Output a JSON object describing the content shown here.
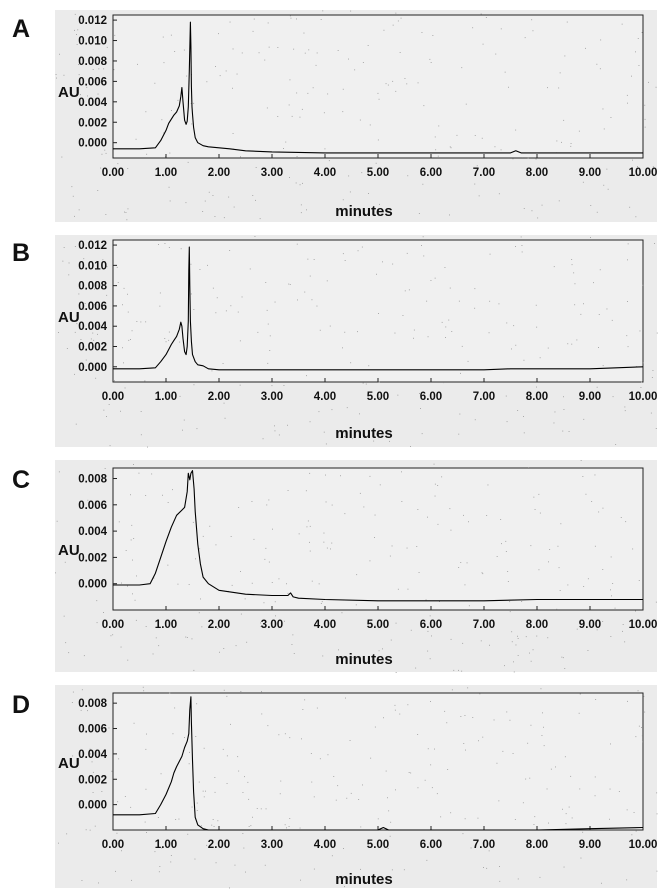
{
  "chart_data": [
    {
      "type": "line",
      "panel": "A",
      "ylabel": "AU",
      "xlabel": "minutes",
      "xlim": [
        0,
        10
      ],
      "ylim": [
        -0.0015,
        0.0125
      ],
      "xticks": [
        "0.00",
        "1.00",
        "2.00",
        "3.00",
        "4.00",
        "5.00",
        "6.00",
        "7.00",
        "8.00",
        "9.00",
        "10.00"
      ],
      "yticks": [
        "0.012",
        "0.010",
        "0.008",
        "0.006",
        "0.004",
        "0.002",
        "0.000"
      ],
      "yvals": [
        0.012,
        0.01,
        0.008,
        0.006,
        0.004,
        0.002,
        0.0
      ],
      "series": [
        {
          "x": [
            0.0,
            0.5,
            0.8,
            0.9,
            1.0,
            1.05,
            1.1,
            1.15,
            1.2,
            1.25,
            1.28,
            1.3,
            1.32,
            1.35,
            1.38,
            1.4,
            1.42,
            1.44,
            1.46,
            1.47,
            1.48,
            1.49,
            1.5,
            1.52,
            1.55,
            1.6,
            1.7,
            1.8,
            2.0,
            2.2,
            2.5,
            3.0,
            4.0,
            5.0,
            6.0,
            7.0,
            7.5,
            7.6,
            7.7,
            8.0,
            9.0,
            10.0
          ],
          "y": [
            -0.0006,
            -0.0006,
            -0.0005,
            0.0002,
            0.0012,
            0.0019,
            0.0023,
            0.0027,
            0.003,
            0.0036,
            0.0045,
            0.0054,
            0.004,
            0.0022,
            0.0018,
            0.0021,
            0.0035,
            0.007,
            0.0118,
            0.0095,
            0.0055,
            0.0035,
            0.0028,
            0.0015,
            0.0005,
            0.0,
            -0.0003,
            -0.0004,
            -0.0005,
            -0.0006,
            -0.0008,
            -0.0009,
            -0.001,
            -0.001,
            -0.001,
            -0.001,
            -0.001,
            -0.0008,
            -0.001,
            -0.001,
            -0.001,
            -0.001
          ]
        }
      ]
    },
    {
      "type": "line",
      "panel": "B",
      "ylabel": "AU",
      "xlabel": "minutes",
      "xlim": [
        0,
        10
      ],
      "ylim": [
        -0.0015,
        0.0125
      ],
      "xticks": [
        "0.00",
        "1.00",
        "2.00",
        "3.00",
        "4.00",
        "5.00",
        "6.00",
        "7.00",
        "8.00",
        "9.00",
        "10.00"
      ],
      "yticks": [
        "0.012",
        "0.010",
        "0.008",
        "0.006",
        "0.004",
        "0.002",
        "0.000"
      ],
      "yvals": [
        0.012,
        0.01,
        0.008,
        0.006,
        0.004,
        0.002,
        0.0
      ],
      "series": [
        {
          "x": [
            0.0,
            0.5,
            0.8,
            0.9,
            1.0,
            1.05,
            1.1,
            1.15,
            1.2,
            1.25,
            1.28,
            1.3,
            1.32,
            1.35,
            1.38,
            1.4,
            1.42,
            1.43,
            1.44,
            1.45,
            1.46,
            1.48,
            1.5,
            1.55,
            1.6,
            1.7,
            1.8,
            2.0,
            3.0,
            4.0,
            5.0,
            6.0,
            7.0,
            7.5,
            8.0,
            8.5,
            9.0,
            9.5,
            10.0
          ],
          "y": [
            -0.0002,
            -0.0002,
            -0.0001,
            0.0005,
            0.0012,
            0.0017,
            0.0022,
            0.0026,
            0.003,
            0.0037,
            0.0044,
            0.004,
            0.0028,
            0.0015,
            0.0012,
            0.002,
            0.0045,
            0.0095,
            0.0118,
            0.008,
            0.0045,
            0.0025,
            0.0012,
            0.0005,
            0.0002,
            0.0001,
            -0.0002,
            -0.0003,
            -0.0003,
            -0.0003,
            -0.0003,
            -0.0003,
            -0.0003,
            -0.0002,
            -0.0002,
            -0.0002,
            -0.0002,
            -0.0001,
            0.0
          ]
        }
      ]
    },
    {
      "type": "line",
      "panel": "C",
      "ylabel": "AU",
      "xlabel": "minutes",
      "xlim": [
        0,
        10
      ],
      "ylim": [
        -0.002,
        0.0088
      ],
      "xticks": [
        "0.00",
        "1.00",
        "2.00",
        "3.00",
        "4.00",
        "5.00",
        "6.00",
        "7.00",
        "8.00",
        "9.00",
        "10.00"
      ],
      "yticks": [
        "0.008",
        "0.006",
        "0.004",
        "0.002",
        "0.000"
      ],
      "yvals": [
        0.008,
        0.006,
        0.004,
        0.002,
        0.0
      ],
      "series": [
        {
          "x": [
            0.0,
            0.5,
            0.7,
            0.8,
            0.9,
            1.0,
            1.1,
            1.2,
            1.3,
            1.35,
            1.4,
            1.42,
            1.45,
            1.47,
            1.5,
            1.53,
            1.55,
            1.6,
            1.65,
            1.7,
            1.8,
            2.0,
            2.5,
            3.0,
            3.3,
            3.35,
            3.4,
            3.5,
            4.0,
            5.0,
            6.0,
            7.0,
            8.0,
            9.0,
            10.0
          ],
          "y": [
            -0.0001,
            -0.0001,
            0.0,
            0.0008,
            0.002,
            0.0032,
            0.0043,
            0.0052,
            0.0056,
            0.0058,
            0.007,
            0.0084,
            0.0079,
            0.0084,
            0.0086,
            0.0072,
            0.0055,
            0.003,
            0.0015,
            0.0005,
            0.0,
            -0.0005,
            -0.0008,
            -0.0009,
            -0.0009,
            -0.0007,
            -0.001,
            -0.0011,
            -0.0012,
            -0.0013,
            -0.0013,
            -0.0013,
            -0.0012,
            -0.0012,
            -0.0012
          ]
        }
      ]
    },
    {
      "type": "line",
      "panel": "D",
      "ylabel": "AU",
      "xlabel": "minutes",
      "xlim": [
        0,
        10
      ],
      "ylim": [
        -0.002,
        0.0088
      ],
      "xticks": [
        "0.00",
        "1.00",
        "2.00",
        "3.00",
        "4.00",
        "5.00",
        "6.00",
        "7.00",
        "8.00",
        "9.00",
        "10.00"
      ],
      "yticks": [
        "0.008",
        "0.006",
        "0.004",
        "0.002",
        "0.000"
      ],
      "yvals": [
        0.008,
        0.006,
        0.004,
        0.002,
        0.0
      ],
      "series": [
        {
          "x": [
            0.0,
            0.5,
            0.8,
            0.9,
            1.0,
            1.1,
            1.15,
            1.2,
            1.3,
            1.35,
            1.4,
            1.43,
            1.45,
            1.47,
            1.48,
            1.5,
            1.52,
            1.55,
            1.6,
            1.7,
            1.8,
            2.0,
            3.0,
            4.0,
            5.0,
            5.1,
            5.2,
            6.0,
            7.0,
            8.0,
            9.0,
            10.0
          ],
          "y": [
            -0.0008,
            -0.0008,
            -0.0007,
            0.0,
            0.0008,
            0.0018,
            0.0025,
            0.003,
            0.0038,
            0.0045,
            0.005,
            0.0056,
            0.0075,
            0.0085,
            0.0065,
            0.0035,
            0.001,
            -0.001,
            -0.0016,
            -0.0019,
            -0.002,
            -0.002,
            -0.002,
            -0.002,
            -0.002,
            -0.0018,
            -0.002,
            -0.002,
            -0.002,
            -0.002,
            -0.0019,
            -0.0018
          ]
        }
      ]
    }
  ],
  "panel_colors": {
    "plot_bg": "#f0f0f0",
    "outer_bg": "#ebebeb",
    "line": "#000000"
  }
}
